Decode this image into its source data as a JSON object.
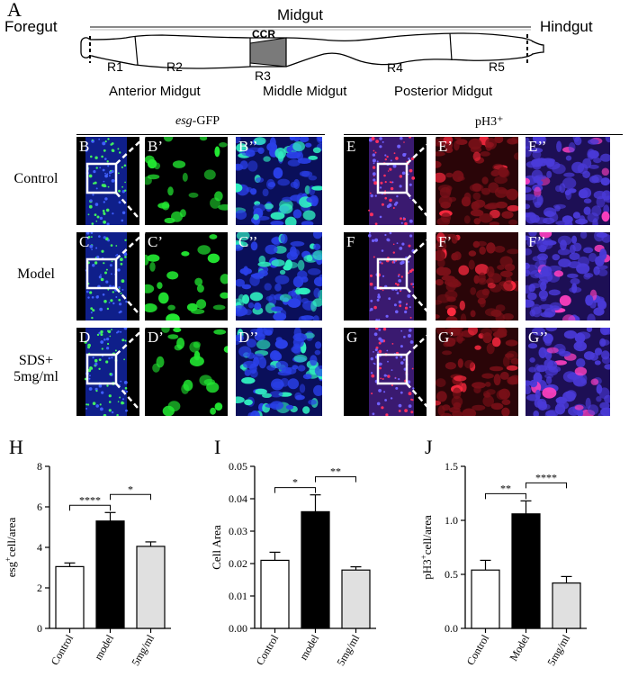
{
  "panel_a": {
    "letter": "A",
    "foregut": "Foregut",
    "midgut": "Midgut",
    "hindgut": "Hindgut",
    "ccr": "CCR",
    "regions": [
      "R1",
      "R2",
      "R3",
      "R4",
      "R5"
    ],
    "anterior": "Anterior Midgut",
    "middle": "Middle Midgut",
    "posterior": "Posterior Midgut"
  },
  "micro": {
    "esg_title_italic": "esg",
    "esg_title_rest": "-GFP",
    "ph3_title": "pH3⁺",
    "rows": [
      {
        "label_lines": [
          "Control"
        ],
        "gfp": [
          "B",
          "B’",
          "B’’"
        ],
        "ph3": [
          "E",
          "E’",
          "E’’"
        ]
      },
      {
        "label_lines": [
          "Model"
        ],
        "gfp": [
          "C",
          "C’",
          "C’’"
        ],
        "ph3": [
          "F",
          "F’",
          "F’’"
        ]
      },
      {
        "label_lines": [
          "SDS+",
          "5mg/ml"
        ],
        "gfp": [
          "D",
          "D’",
          "D’’"
        ],
        "ph3": [
          "G",
          "G’",
          "G’’"
        ]
      }
    ]
  },
  "colors": {
    "model_bar": "#000000",
    "control_bar": "#ffffff",
    "treat_bar": "#e0e0e0",
    "gfp": "#22e832",
    "dapi": "#2230d8",
    "ph3": "#e8202a"
  },
  "chart_data": [
    {
      "type": "bar",
      "letter": "H",
      "categories": [
        "Control",
        "model",
        "5mg/ml"
      ],
      "values": [
        3.05,
        5.3,
        4.05
      ],
      "errors": [
        0.18,
        0.42,
        0.22
      ],
      "ylabel_sup": "+",
      "ylabel_pre": "esg",
      "ylabel_post": "cell/area",
      "ylim": [
        0,
        8
      ],
      "yticks": [
        "0",
        "2",
        "4",
        "6",
        "8"
      ],
      "significance": [
        {
          "from": 0,
          "to": 1,
          "label": "****"
        },
        {
          "from": 1,
          "to": 2,
          "label": "*"
        }
      ]
    },
    {
      "type": "bar",
      "letter": "I",
      "categories": [
        "Control",
        "model",
        "5mg/ml"
      ],
      "values": [
        0.021,
        0.036,
        0.018
      ],
      "errors": [
        0.0025,
        0.0052,
        0.001
      ],
      "ylabel": "Cell Area",
      "ylim": [
        0,
        0.05
      ],
      "yticks": [
        "0.00",
        "0.01",
        "0.02",
        "0.03",
        "0.04",
        "0.05"
      ],
      "significance": [
        {
          "from": 0,
          "to": 1,
          "label": "*"
        },
        {
          "from": 1,
          "to": 2,
          "label": "**"
        }
      ]
    },
    {
      "type": "bar",
      "letter": "J",
      "categories": [
        "Control",
        "Model",
        "5mg/ml"
      ],
      "values": [
        0.54,
        1.06,
        0.42
      ],
      "errors": [
        0.09,
        0.12,
        0.06
      ],
      "ylabel_pre": "pH3",
      "ylabel_sup": "+",
      "ylabel_post": "cell/area",
      "ylim": [
        0,
        1.5
      ],
      "yticks": [
        "0.0",
        "0.5",
        "1.0",
        "1.5"
      ],
      "significance": [
        {
          "from": 0,
          "to": 1,
          "label": "**"
        },
        {
          "from": 1,
          "to": 2,
          "label": "****"
        }
      ]
    }
  ]
}
